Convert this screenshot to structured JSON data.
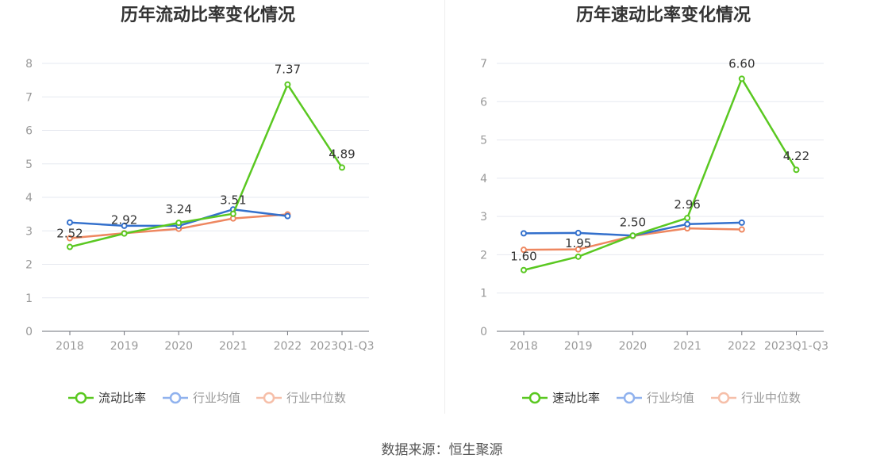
{
  "source": "数据来源：恒生聚源",
  "colors": {
    "primary": "#5ac821",
    "mean": "#3370cc",
    "median": "#ee8760",
    "mean_legend": "#90b2ee",
    "median_legend": "#f6bfa9",
    "grid": "#e6e9f0",
    "axis": "#6e7079"
  },
  "chart_data": [
    {
      "type": "line",
      "title": "历年流动比率变化情况",
      "categories": [
        "2018",
        "2019",
        "2020",
        "2021",
        "2022",
        "2023Q1-Q3"
      ],
      "ylim": [
        0,
        8
      ],
      "yticks": [
        0,
        1,
        2,
        3,
        4,
        5,
        6,
        7,
        8
      ],
      "grid": true,
      "legend_position": "bottom-center",
      "series": [
        {
          "name": "流动比率",
          "values": [
            2.52,
            2.92,
            3.24,
            3.51,
            7.37,
            4.89
          ],
          "labels": [
            "2.52",
            "2.92",
            "3.24",
            "3.51",
            "7.37",
            "4.89"
          ]
        },
        {
          "name": "行业均值",
          "values": [
            3.25,
            3.15,
            3.15,
            3.64,
            3.44,
            null
          ]
        },
        {
          "name": "行业中位数",
          "values": [
            2.78,
            2.93,
            3.06,
            3.37,
            3.49,
            null
          ]
        }
      ]
    },
    {
      "type": "line",
      "title": "历年速动比率变化情况",
      "categories": [
        "2018",
        "2019",
        "2020",
        "2021",
        "2022",
        "2023Q1-Q3"
      ],
      "ylim": [
        0,
        7
      ],
      "yticks": [
        0,
        1,
        2,
        3,
        4,
        5,
        6,
        7
      ],
      "grid": true,
      "legend_position": "bottom-center",
      "series": [
        {
          "name": "速动比率",
          "values": [
            1.6,
            1.95,
            2.5,
            2.96,
            6.6,
            4.22
          ],
          "labels": [
            "1.60",
            "1.95",
            "2.50",
            "2.96",
            "6.60",
            "4.22"
          ]
        },
        {
          "name": "行业均值",
          "values": [
            2.56,
            2.57,
            2.5,
            2.8,
            2.84,
            null
          ]
        },
        {
          "name": "行业中位数",
          "values": [
            2.13,
            2.14,
            2.49,
            2.69,
            2.66,
            null
          ]
        }
      ]
    }
  ]
}
